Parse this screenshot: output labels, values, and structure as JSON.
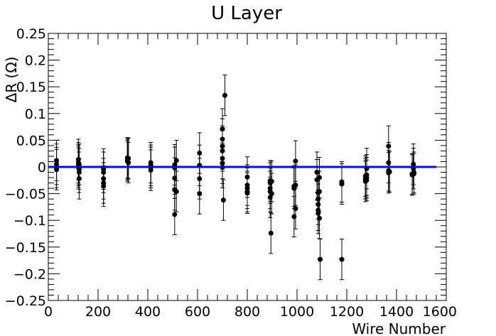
{
  "chart_data": {
    "type": "scatter",
    "title": "U Layer",
    "xlabel": "Wire Number",
    "ylabel": "ΔR (Ω)",
    "xlim": [
      0,
      1600
    ],
    "ylim": [
      -0.25,
      0.25
    ],
    "xticks": [
      0,
      200,
      400,
      600,
      800,
      1000,
      1200,
      1400,
      1600
    ],
    "xtick_labels": [
      "0",
      "200",
      "400",
      "600",
      "800",
      "1000",
      "1200",
      "1400",
      "1600"
    ],
    "yticks": [
      -0.25,
      -0.2,
      -0.15,
      -0.1,
      -0.05,
      0,
      0.05,
      0.1,
      0.15,
      0.2,
      0.25
    ],
    "ytick_labels": [
      "−0.25",
      "−0.2",
      "−0.15",
      "−0.1",
      "−0.05",
      "0",
      "0.05",
      "0.1",
      "0.15",
      "0.2",
      "0.25"
    ],
    "grid": false,
    "marker_color": "#000000",
    "fit_line": {
      "x0": 0,
      "x1": 1560,
      "y": 0,
      "color": "#0a0fc8"
    },
    "points": [
      {
        "x": 33,
        "y": 0.012,
        "err": 0.038
      },
      {
        "x": 33,
        "y": 0.005,
        "err": 0.038
      },
      {
        "x": 33,
        "y": -0.001,
        "err": 0.038
      },
      {
        "x": 33,
        "y": -0.005,
        "err": 0.038
      },
      {
        "x": 121,
        "y": 0.014,
        "err": 0.038
      },
      {
        "x": 121,
        "y": 0.008,
        "err": 0.038
      },
      {
        "x": 121,
        "y": 0.003,
        "err": 0.038
      },
      {
        "x": 121,
        "y": -0.001,
        "err": 0.038
      },
      {
        "x": 124,
        "y": -0.004,
        "err": 0.038
      },
      {
        "x": 124,
        "y": -0.01,
        "err": 0.038
      },
      {
        "x": 124,
        "y": -0.022,
        "err": 0.038
      },
      {
        "x": 124,
        "y": 0.005,
        "err": 0.038
      },
      {
        "x": 222,
        "y": -0.004,
        "err": 0.038
      },
      {
        "x": 222,
        "y": -0.01,
        "err": 0.038
      },
      {
        "x": 222,
        "y": -0.022,
        "err": 0.038
      },
      {
        "x": 222,
        "y": -0.03,
        "err": 0.038
      },
      {
        "x": 222,
        "y": -0.036,
        "err": 0.038
      },
      {
        "x": 318,
        "y": 0.017,
        "err": 0.038
      },
      {
        "x": 318,
        "y": 0.014,
        "err": 0.038
      },
      {
        "x": 318,
        "y": 0.011,
        "err": 0.038
      },
      {
        "x": 322,
        "y": 0.008,
        "err": 0.038
      },
      {
        "x": 322,
        "y": 0.016,
        "err": 0.038
      },
      {
        "x": 412,
        "y": 0.008,
        "err": 0.038
      },
      {
        "x": 412,
        "y": 0.003,
        "err": 0.038
      },
      {
        "x": 412,
        "y": -0.001,
        "err": 0.038
      },
      {
        "x": 412,
        "y": -0.006,
        "err": 0.038
      },
      {
        "x": 508,
        "y": 0.004,
        "err": 0.038
      },
      {
        "x": 508,
        "y": -0.001,
        "err": 0.038
      },
      {
        "x": 508,
        "y": -0.021,
        "err": 0.038
      },
      {
        "x": 508,
        "y": -0.043,
        "err": 0.038
      },
      {
        "x": 508,
        "y": -0.089,
        "err": 0.038
      },
      {
        "x": 515,
        "y": 0.012,
        "err": 0.038
      },
      {
        "x": 515,
        "y": -0.046,
        "err": 0.038
      },
      {
        "x": 608,
        "y": 0.026,
        "err": 0.038
      },
      {
        "x": 608,
        "y": 0.003,
        "err": 0.038
      },
      {
        "x": 608,
        "y": -0.022,
        "err": 0.038
      },
      {
        "x": 608,
        "y": -0.05,
        "err": 0.038
      },
      {
        "x": 700,
        "y": 0.071,
        "err": 0.038
      },
      {
        "x": 700,
        "y": 0.052,
        "err": 0.038
      },
      {
        "x": 700,
        "y": 0.039,
        "err": 0.038
      },
      {
        "x": 700,
        "y": 0.03,
        "err": 0.038
      },
      {
        "x": 700,
        "y": 0.016,
        "err": 0.038
      },
      {
        "x": 700,
        "y": 0.007,
        "err": 0.038
      },
      {
        "x": 700,
        "y": -0.001,
        "err": 0.038
      },
      {
        "x": 704,
        "y": -0.062,
        "err": 0.038
      },
      {
        "x": 710,
        "y": 0.134,
        "err": 0.038
      },
      {
        "x": 800,
        "y": -0.019,
        "err": 0.038
      },
      {
        "x": 800,
        "y": -0.034,
        "err": 0.038
      },
      {
        "x": 800,
        "y": -0.04,
        "err": 0.038
      },
      {
        "x": 800,
        "y": -0.046,
        "err": 0.038
      },
      {
        "x": 800,
        "y": -0.049,
        "err": 0.038
      },
      {
        "x": 892,
        "y": -0.026,
        "err": 0.038
      },
      {
        "x": 892,
        "y": -0.03,
        "err": 0.038
      },
      {
        "x": 892,
        "y": -0.04,
        "err": 0.038
      },
      {
        "x": 892,
        "y": -0.046,
        "err": 0.038
      },
      {
        "x": 892,
        "y": -0.057,
        "err": 0.038
      },
      {
        "x": 895,
        "y": -0.124,
        "err": 0.038
      },
      {
        "x": 898,
        "y": -0.027,
        "err": 0.038
      },
      {
        "x": 898,
        "y": -0.05,
        "err": 0.038
      },
      {
        "x": 988,
        "y": -0.036,
        "err": 0.038
      },
      {
        "x": 988,
        "y": -0.04,
        "err": 0.038
      },
      {
        "x": 988,
        "y": -0.093,
        "err": 0.038
      },
      {
        "x": 994,
        "y": 0.011,
        "err": 0.038
      },
      {
        "x": 994,
        "y": -0.034,
        "err": 0.038
      },
      {
        "x": 994,
        "y": -0.078,
        "err": 0.038
      },
      {
        "x": 1080,
        "y": -0.01,
        "err": 0.038
      },
      {
        "x": 1080,
        "y": -0.024,
        "err": 0.038
      },
      {
        "x": 1085,
        "y": -0.048,
        "err": 0.038
      },
      {
        "x": 1085,
        "y": -0.06,
        "err": 0.038
      },
      {
        "x": 1085,
        "y": -0.07,
        "err": 0.038
      },
      {
        "x": 1085,
        "y": -0.081,
        "err": 0.038
      },
      {
        "x": 1085,
        "y": -0.087,
        "err": 0.038
      },
      {
        "x": 1090,
        "y": -0.096,
        "err": 0.038
      },
      {
        "x": 1090,
        "y": -0.046,
        "err": 0.038
      },
      {
        "x": 1090,
        "y": -0.02,
        "err": 0.038
      },
      {
        "x": 1093,
        "y": -0.173,
        "err": 0.038
      },
      {
        "x": 1180,
        "y": -0.028,
        "err": 0.038
      },
      {
        "x": 1180,
        "y": -0.032,
        "err": 0.038
      },
      {
        "x": 1180,
        "y": -0.173,
        "err": 0.038
      },
      {
        "x": 1275,
        "y": -0.017,
        "err": 0.038
      },
      {
        "x": 1275,
        "y": -0.022,
        "err": 0.038
      },
      {
        "x": 1275,
        "y": -0.027,
        "err": 0.038
      },
      {
        "x": 1280,
        "y": -0.003,
        "err": 0.038
      },
      {
        "x": 1280,
        "y": -0.015,
        "err": 0.038
      },
      {
        "x": 1280,
        "y": -0.02,
        "err": 0.038
      },
      {
        "x": 1280,
        "y": -0.025,
        "err": 0.038
      },
      {
        "x": 1368,
        "y": 0.039,
        "err": 0.038
      },
      {
        "x": 1368,
        "y": 0.008,
        "err": 0.038
      },
      {
        "x": 1368,
        "y": -0.007,
        "err": 0.038
      },
      {
        "x": 1368,
        "y": -0.011,
        "err": 0.038
      },
      {
        "x": 1372,
        "y": -0.009,
        "err": 0.038
      },
      {
        "x": 1463,
        "y": -0.013,
        "err": 0.038
      },
      {
        "x": 1463,
        "y": -0.015,
        "err": 0.038
      },
      {
        "x": 1468,
        "y": 0.005,
        "err": 0.038
      },
      {
        "x": 1468,
        "y": -0.003,
        "err": 0.038
      },
      {
        "x": 1470,
        "y": -0.01,
        "err": 0.038
      },
      {
        "x": 1470,
        "y": -0.013,
        "err": 0.038
      }
    ]
  }
}
